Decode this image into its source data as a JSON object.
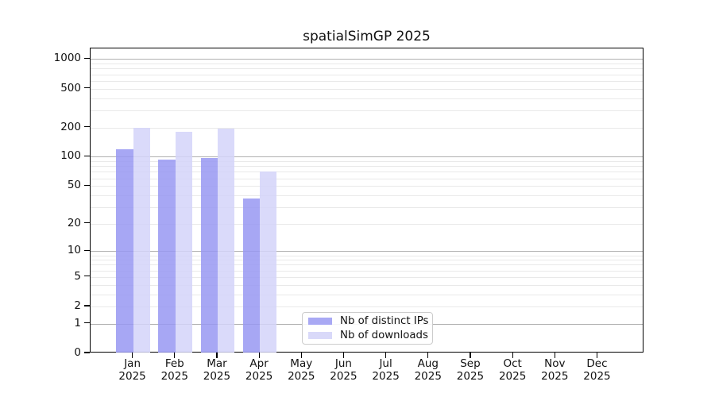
{
  "chart_data": {
    "type": "bar",
    "title": "spatialSimGP 2025",
    "x_categories": [
      "Jan",
      "Feb",
      "Mar",
      "Apr",
      "May",
      "Jun",
      "Jul",
      "Aug",
      "Sep",
      "Oct",
      "Nov",
      "Dec"
    ],
    "x_year_label": "2025",
    "series": [
      {
        "name": "Nb of distinct IPs",
        "color": "#a9a9f4",
        "fill": "rgba(152,152,242,0.85)",
        "values": [
          120,
          94,
          97,
          37,
          null,
          null,
          null,
          null,
          null,
          null,
          null,
          null
        ]
      },
      {
        "name": "Nb of downloads",
        "color": "#d9d9f9",
        "fill": "rgba(211,211,249,0.85)",
        "values": [
          200,
          180,
          195,
          70,
          null,
          null,
          null,
          null,
          null,
          null,
          null,
          null
        ]
      }
    ],
    "y_axis": {
      "scale": "log10(1+x)",
      "tick_values": [
        0,
        1,
        2,
        5,
        10,
        20,
        50,
        100,
        200,
        500,
        1000
      ],
      "tick_labels": [
        "0",
        "1",
        "2",
        "5",
        "10",
        "20",
        "50",
        "100",
        "200",
        "500",
        "1000"
      ],
      "minor_gridline_values": [
        3,
        4,
        6,
        7,
        8,
        9,
        30,
        40,
        60,
        70,
        80,
        90,
        300,
        400,
        600,
        700,
        800,
        900
      ],
      "ylim": [
        0,
        1285
      ]
    },
    "grid": true,
    "gridline_major_color": "#b0b0b0",
    "gridline_minor_color": "#e9e9e9",
    "legend": {
      "position": "bottom-center",
      "items": [
        "Nb of distinct IPs",
        "Nb of downloads"
      ]
    }
  }
}
